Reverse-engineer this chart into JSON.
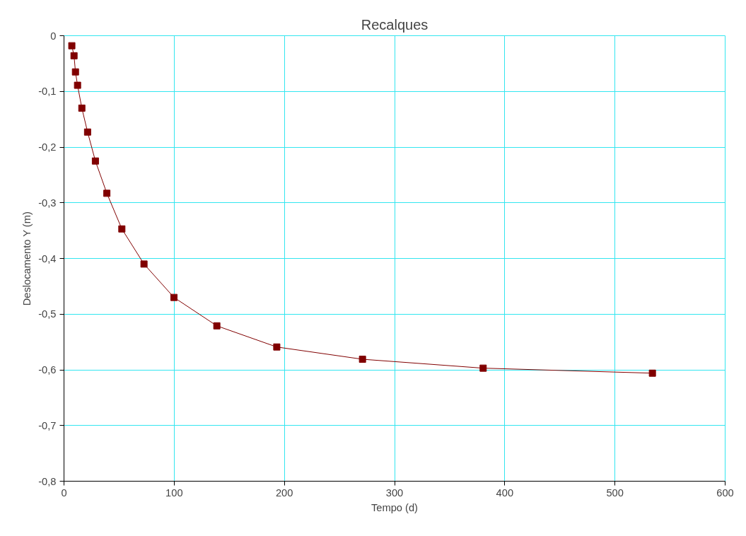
{
  "chart_data": {
    "type": "line",
    "title": "Recalques",
    "xlabel": "Tempo (d)",
    "ylabel": "Deslocamento Y (m)",
    "x": [
      7.1,
      9.1,
      10.4,
      12.3,
      16.2,
      21.4,
      28.5,
      38.9,
      52.5,
      72.6,
      99.8,
      138.7,
      193.1,
      270.9,
      380.4,
      534
    ],
    "series": [
      {
        "color": "#800000",
        "values": [
          -0.018,
          -0.036,
          -0.065,
          -0.089,
          -0.13,
          -0.173,
          -0.225,
          -0.283,
          -0.347,
          -0.41,
          -0.47,
          -0.521,
          -0.559,
          -0.581,
          -0.597,
          -0.606
        ]
      }
    ],
    "xlim": [
      0,
      600
    ],
    "xticks": [
      0,
      100,
      200,
      300,
      400,
      500,
      600
    ],
    "ylim": [
      -0.8,
      0
    ],
    "yticks": [
      {
        "value": -0.8,
        "label": "-0,8"
      },
      {
        "value": -0.7,
        "label": "-0,7"
      },
      {
        "value": -0.6,
        "label": "-0,6"
      },
      {
        "value": -0.5,
        "label": "-0,5"
      },
      {
        "value": -0.4,
        "label": "-0,4"
      },
      {
        "value": -0.3,
        "label": "-0,3"
      },
      {
        "value": -0.2,
        "label": "-0,2"
      },
      {
        "value": -0.1,
        "label": "-0,1"
      },
      {
        "value": 0,
        "label": "0"
      }
    ],
    "grid": true,
    "marker": "square",
    "line_style": "solid"
  }
}
